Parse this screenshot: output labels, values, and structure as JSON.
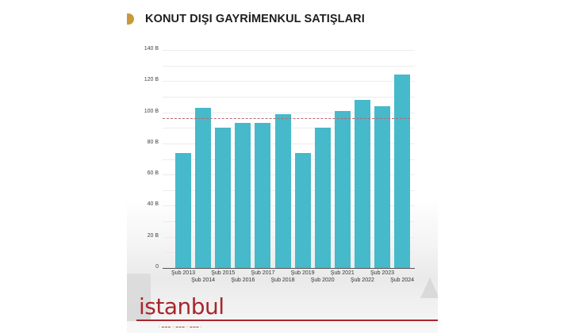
{
  "title": "KONUT DIŞI GAYRİMENKUL SATIŞLARI",
  "logo": {
    "text": "istanbul",
    "color": "#a8262e"
  },
  "colors": {
    "bar": "#46b9cb",
    "average_line": "#b56a72",
    "title_icon": "#c79a3c"
  },
  "chart_data": {
    "type": "bar",
    "title": "KONUT DIŞI GAYRİMENKUL SATIŞLARI",
    "xlabel": "",
    "ylabel": "",
    "categories": [
      "Şub 2013",
      "Şub 2014",
      "Şub 2015",
      "Şub 2016",
      "Şub 2017",
      "Şub 2018",
      "Şub 2019",
      "Şub 2020",
      "Şub 2021",
      "Şub 2022",
      "Şub 2023",
      "Şub 2024"
    ],
    "values": [
      74,
      103,
      90,
      93,
      93,
      99,
      74,
      90,
      101,
      108,
      104,
      124
    ],
    "unit": "B",
    "average_line": 96,
    "ylim": [
      0,
      140
    ],
    "yticks": [
      "0",
      "20 B",
      "40 B",
      "60 B",
      "80 B",
      "100 B",
      "120 B",
      "140 B"
    ],
    "grid": true,
    "legend": null
  }
}
